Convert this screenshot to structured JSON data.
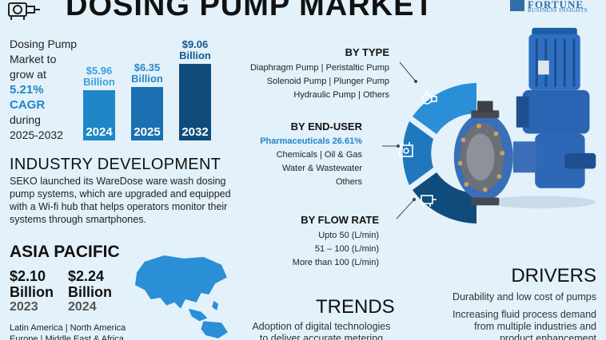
{
  "header": {
    "title": "DOSING PUMP MARKET",
    "brand_name": "FORTUNE",
    "brand_sub": "BUSINESS INSIGHTS"
  },
  "growth": {
    "line1": "Dosing Pump",
    "line2": "Market to",
    "line3": "grow at",
    "rate": "5.21%",
    "cagr": "CAGR",
    "during": "during",
    "period": "2025-2032"
  },
  "market_bars": {
    "max_value": 9.06,
    "items": [
      {
        "year": "2024",
        "value": 5.96,
        "label_value": "$5.96",
        "label_unit": "Billion",
        "color": "#1f86c8",
        "label_color": "#3aa0d8"
      },
      {
        "year": "2025",
        "value": 6.35,
        "label_value": "$6.35",
        "label_unit": "Billion",
        "color": "#1a70b0",
        "label_color": "#2a86c6"
      },
      {
        "year": "2032",
        "value": 9.06,
        "label_value": "$9.06",
        "label_unit": "Billion",
        "color": "#0f4c7c",
        "label_color": "#14598f"
      }
    ]
  },
  "industry": {
    "heading": "INDUSTRY DEVELOPMENT",
    "lines": [
      "SEKO launched its WareDose ware wash dosing",
      "pump systems, which are upgraded and equipped",
      "with a Wi-fi hub that helps operators monitor their",
      "systems through smartphones."
    ]
  },
  "asia_pacific": {
    "heading": "ASIA PACIFIC",
    "values": [
      {
        "amount": "$2.10",
        "unit": "Billion",
        "year": "2023"
      },
      {
        "amount": "$2.24",
        "unit": "Billion",
        "year": "2024"
      }
    ],
    "regions": [
      "Latin America  |  North America",
      "Europe  |  Middle East & Africa"
    ]
  },
  "by_type": {
    "heading": "BY TYPE",
    "lines": [
      "Diaphragm Pump  |  Peristaltic Pump",
      "Solenoid Pump  |  Plunger Pump",
      "Hydraulic Pump  |  Others"
    ]
  },
  "by_end_user": {
    "heading": "BY END-USER",
    "highlight": "Pharmaceuticals 26.61%",
    "lines": [
      "Chemicals  |  Oil & Gas",
      "Water & Wastewater",
      "Others"
    ]
  },
  "by_flow_rate": {
    "heading": "BY FLOW RATE",
    "lines": [
      "Upto 50 (L/min)",
      "51 – 100 (L/min)",
      "More than 100 (L/min)"
    ]
  },
  "drivers": {
    "heading": "DRIVERS",
    "lines": [
      "Durability and low cost of pumps",
      "Increasing fluid process demand",
      "from multiple industries and",
      "product enhancement"
    ]
  },
  "trends": {
    "heading": "TRENDS",
    "lines": [
      "Adoption of digital technologies",
      "to deliver accurate metering"
    ]
  },
  "icons": [
    "pump-logo-icon",
    "type-pump-icon",
    "end-user-industry-icon",
    "flow-meter-icon",
    "dosing-pump-illustration",
    "asia-pacific-map"
  ],
  "colors": {
    "accent": "#1f86c8",
    "dark": "#0f4c7c",
    "background": "#e3f1fa"
  }
}
